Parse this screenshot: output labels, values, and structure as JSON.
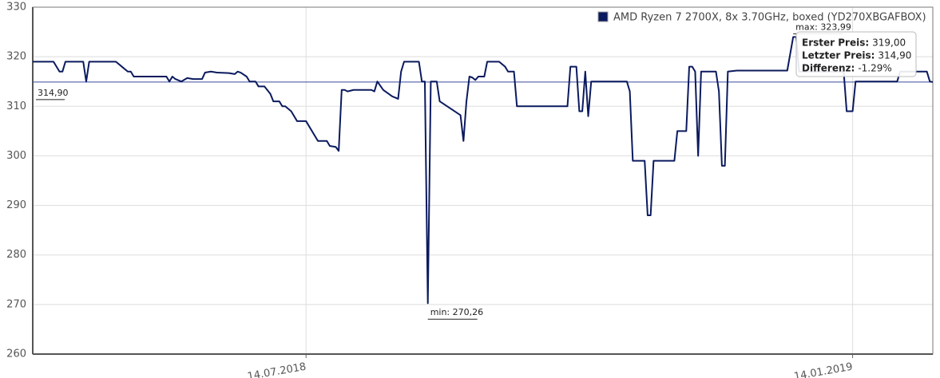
{
  "chart_data": {
    "type": "line",
    "x": [
      "2018-04-13",
      "2018-04-20",
      "2018-04-22",
      "2018-04-23",
      "2018-04-24",
      "2018-04-26",
      "2018-04-30",
      "2018-05-01",
      "2018-05-02",
      "2018-05-11",
      "2018-05-13",
      "2018-05-14",
      "2018-05-15",
      "2018-05-16",
      "2018-05-17",
      "2018-05-28",
      "2018-05-29",
      "2018-05-30",
      "2018-05-31",
      "2018-06-02",
      "2018-06-04",
      "2018-06-06",
      "2018-06-09",
      "2018-06-10",
      "2018-06-12",
      "2018-06-14",
      "2018-06-18",
      "2018-06-20",
      "2018-06-21",
      "2018-06-22",
      "2018-06-24",
      "2018-06-25",
      "2018-06-27",
      "2018-06-28",
      "2018-06-30",
      "2018-07-02",
      "2018-07-03",
      "2018-07-05",
      "2018-07-06",
      "2018-07-07",
      "2018-07-09",
      "2018-07-11",
      "2018-07-14",
      "2018-07-18",
      "2018-07-21",
      "2018-07-22",
      "2018-07-24",
      "2018-07-25",
      "2018-07-26",
      "2018-07-27",
      "2018-07-28",
      "2018-07-30",
      "2018-08-05",
      "2018-08-06",
      "2018-08-07",
      "2018-08-09",
      "2018-08-12",
      "2018-08-14",
      "2018-08-15",
      "2018-08-16",
      "2018-08-17",
      "2018-08-21",
      "2018-08-22",
      "2018-08-23",
      "2018-08-24",
      "2018-08-25",
      "2018-08-27",
      "2018-08-28",
      "2018-09-04",
      "2018-09-05",
      "2018-09-06",
      "2018-09-07",
      "2018-09-08",
      "2018-09-09",
      "2018-09-10",
      "2018-09-12",
      "2018-09-13",
      "2018-09-17",
      "2018-09-19",
      "2018-09-20",
      "2018-09-22",
      "2018-09-23",
      "2018-10-10",
      "2018-10-11",
      "2018-10-13",
      "2018-10-14",
      "2018-10-15",
      "2018-10-16",
      "2018-10-17",
      "2018-10-18",
      "2018-10-30",
      "2018-10-31",
      "2018-11-01",
      "2018-11-05",
      "2018-11-06",
      "2018-11-07",
      "2018-11-08",
      "2018-11-15",
      "2018-11-16",
      "2018-11-19",
      "2018-11-20",
      "2018-11-21",
      "2018-11-22",
      "2018-11-23",
      "2018-11-24",
      "2018-11-29",
      "2018-11-30",
      "2018-12-01",
      "2018-12-02",
      "2018-12-03",
      "2018-12-06",
      "2018-12-23",
      "2018-12-25",
      "2018-12-26",
      "2018-12-27",
      "2019-01-11",
      "2019-01-12",
      "2019-01-14",
      "2019-01-15",
      "2019-01-29",
      "2019-01-30",
      "2019-02-08",
      "2019-02-09",
      "2019-02-10"
    ],
    "series": [
      {
        "name": "AMD Ryzen 7 2700X, 8x 3.70GHz, boxed (YD270XBGAFBOX)",
        "color": "#0b1a5e",
        "values": [
          319,
          319,
          317,
          317,
          319,
          319,
          319,
          315,
          319,
          319,
          318,
          317.5,
          317,
          317,
          316,
          316,
          315,
          316,
          315.5,
          315,
          315.7,
          315.5,
          315.5,
          316.8,
          317,
          316.8,
          316.7,
          316.5,
          317,
          316.8,
          316,
          315,
          315,
          314,
          314,
          312.5,
          311,
          311,
          310,
          310,
          309,
          307,
          307,
          303,
          303,
          302,
          301.8,
          301,
          313.3,
          313.3,
          313,
          313.3,
          313.3,
          313,
          315,
          313.3,
          312,
          311.5,
          317,
          319,
          319,
          319,
          315,
          315,
          270.26,
          315,
          315,
          311,
          308.2,
          303,
          311,
          316,
          315.8,
          315.3,
          316,
          316,
          319,
          319,
          318,
          317,
          317,
          310,
          310,
          318,
          318,
          309,
          309,
          317,
          308,
          315,
          315,
          313,
          299,
          299,
          288,
          288,
          299,
          299,
          305,
          305,
          318,
          318,
          317,
          300,
          317,
          317,
          313,
          298,
          298,
          317,
          317.2,
          317.2,
          323.99,
          323.99,
          317,
          317,
          309,
          309,
          315,
          315,
          317,
          317,
          315,
          314.9
        ]
      }
    ],
    "xlim": [
      "2018-04-13",
      "2019-02-10"
    ],
    "xticks": [
      {
        "value": "2018-07-14",
        "label": "14.07.2018"
      },
      {
        "value": "2019-01-14",
        "label": "14.01.2019"
      }
    ],
    "ylim": [
      260,
      330
    ],
    "yticks": [
      260,
      270,
      280,
      290,
      300,
      310,
      320,
      330
    ],
    "grid": true,
    "reference_line": {
      "value": 314.9,
      "label": "314,90"
    },
    "annotations": [
      {
        "text": "min: 270,26",
        "x": "2018-08-24",
        "y": 270.26
      },
      {
        "text": "max: 323,99",
        "x": "2018-12-25",
        "y": 323.99
      }
    ],
    "info_box": [
      {
        "label": "Erster Preis:",
        "value": "319,00"
      },
      {
        "label": "Letzter Preis:",
        "value": "314,90"
      },
      {
        "label": "Differenz:",
        "value": "-1.29%"
      }
    ],
    "legend": "top-right"
  }
}
